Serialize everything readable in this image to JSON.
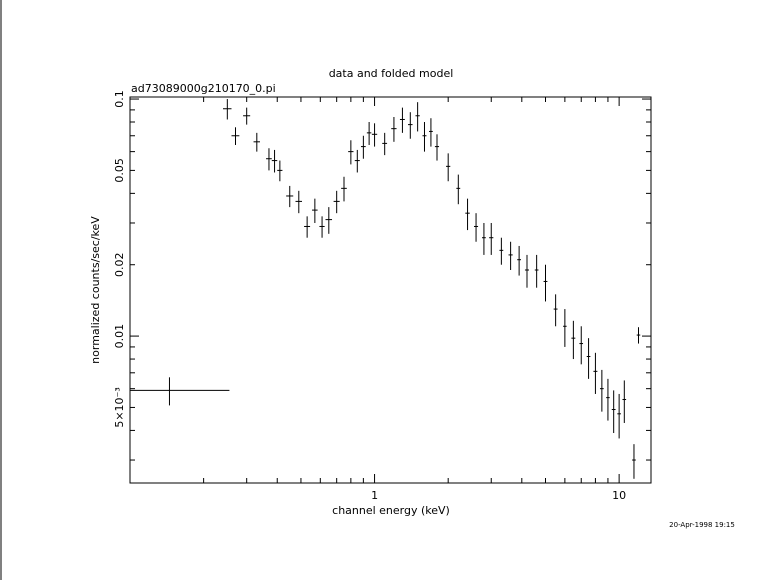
{
  "chart_data": {
    "type": "scatter",
    "title": "data and folded model",
    "subtitle": "ad73089000g210170_0.pi",
    "xlabel": "channel energy (keV)",
    "ylabel": "normalized counts/sec/keV",
    "timestamp": "20-Apr-1998 19:15",
    "x_scale": "log",
    "y_scale": "log",
    "xlim": [
      0.1,
      13.5
    ],
    "ylim": [
      0.0024,
      0.102
    ],
    "grid": false,
    "x_ticks": [
      {
        "value": 1,
        "label": "1"
      },
      {
        "value": 10,
        "label": "10"
      }
    ],
    "y_ticks": [
      {
        "value": 0.005,
        "label": "5×10⁻³"
      },
      {
        "value": 0.01,
        "label": "0.01"
      },
      {
        "value": 0.02,
        "label": "0.02"
      },
      {
        "value": 0.05,
        "label": "0.05"
      },
      {
        "value": 0.1,
        "label": "0.1"
      }
    ],
    "series": [
      {
        "x": [
          0.145,
          0.25,
          0.27,
          0.3,
          0.33,
          0.37,
          0.39,
          0.41,
          0.45,
          0.49,
          0.53,
          0.57,
          0.61,
          0.65,
          0.7,
          0.75,
          0.8,
          0.85,
          0.9,
          0.95,
          1.0,
          1.1,
          1.2,
          1.3,
          1.4,
          1.5,
          1.6,
          1.7,
          1.8,
          2.0,
          2.2,
          2.4,
          2.6,
          2.8,
          3.0,
          3.3,
          3.6,
          3.9,
          4.2,
          4.6,
          5.0,
          5.5,
          6.0,
          6.5,
          7.0,
          7.5,
          8.0,
          8.5,
          9.0,
          9.5,
          10.0,
          10.5,
          11.5,
          12.0
        ],
        "y": [
          0.0059,
          0.091,
          0.07,
          0.085,
          0.066,
          0.056,
          0.055,
          0.05,
          0.039,
          0.037,
          0.029,
          0.034,
          0.029,
          0.031,
          0.037,
          0.042,
          0.06,
          0.055,
          0.063,
          0.072,
          0.071,
          0.065,
          0.075,
          0.082,
          0.078,
          0.085,
          0.07,
          0.073,
          0.063,
          0.052,
          0.042,
          0.033,
          0.029,
          0.026,
          0.026,
          0.023,
          0.022,
          0.021,
          0.019,
          0.019,
          0.017,
          0.013,
          0.011,
          0.0098,
          0.0093,
          0.0082,
          0.0071,
          0.006,
          0.0055,
          0.0049,
          0.0047,
          0.0054,
          0.003,
          0.0101
        ],
        "xerr": [
          0.11,
          0.01,
          0.01,
          0.01,
          0.01,
          0.01,
          0.01,
          0.01,
          0.015,
          0.015,
          0.015,
          0.015,
          0.015,
          0.02,
          0.02,
          0.02,
          0.02,
          0.02,
          0.02,
          0.02,
          0.025,
          0.025,
          0.03,
          0.03,
          0.03,
          0.03,
          0.03,
          0.03,
          0.035,
          0.04,
          0.04,
          0.05,
          0.05,
          0.05,
          0.06,
          0.06,
          0.07,
          0.07,
          0.08,
          0.08,
          0.09,
          0.1,
          0.1,
          0.12,
          0.12,
          0.13,
          0.15,
          0.15,
          0.15,
          0.17,
          0.17,
          0.18,
          0.2,
          0.2
        ],
        "yerr": [
          0.0008,
          0.009,
          0.006,
          0.007,
          0.006,
          0.006,
          0.006,
          0.005,
          0.004,
          0.004,
          0.003,
          0.004,
          0.003,
          0.004,
          0.004,
          0.005,
          0.007,
          0.006,
          0.007,
          0.008,
          0.008,
          0.007,
          0.009,
          0.01,
          0.01,
          0.012,
          0.01,
          0.01,
          0.008,
          0.007,
          0.006,
          0.005,
          0.004,
          0.004,
          0.004,
          0.003,
          0.003,
          0.003,
          0.003,
          0.003,
          0.003,
          0.002,
          0.002,
          0.0018,
          0.0017,
          0.0016,
          0.0014,
          0.0012,
          0.0011,
          0.001,
          0.001,
          0.0011,
          0.0005,
          0.0008
        ]
      }
    ]
  }
}
